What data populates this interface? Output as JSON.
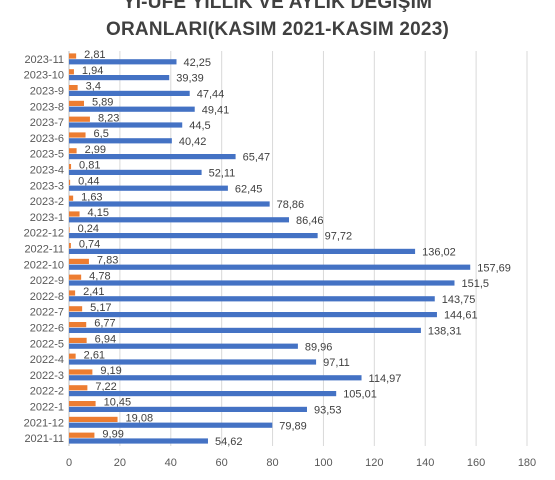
{
  "chart_data": {
    "type": "bar",
    "orientation": "horizontal",
    "title_lines": [
      "Yİ-ÜFE YILLIK VE AYLIK DEĞİŞİM",
      "ORANLARI(KASIM 2021-KASIM 2023)"
    ],
    "categories": [
      "2023-11",
      "2023-10",
      "2023-9",
      "2023-8",
      "2023-7",
      "2023-6",
      "2023-5",
      "2023-4",
      "2023-3",
      "2023-2",
      "2023-1",
      "2022-12",
      "2022-11",
      "2022-10",
      "2022-9",
      "2022-8",
      "2022-7",
      "2022-6",
      "2022-5",
      "2022-4",
      "2022-3",
      "2022-2",
      "2022-1",
      "2021-12",
      "2021-11"
    ],
    "series": [
      {
        "color": "#4472C4",
        "values": [
          42.25,
          39.39,
          47.44,
          49.41,
          44.5,
          40.42,
          65.47,
          52.11,
          62.45,
          78.86,
          86.46,
          97.72,
          136.02,
          157.69,
          151.5,
          143.75,
          144.61,
          138.31,
          89.96,
          97.11,
          114.97,
          105.01,
          93.53,
          79.89,
          54.62
        ],
        "labels": [
          "42,25",
          "39,39",
          "47,44",
          "49,41",
          "44,5",
          "40,42",
          "65,47",
          "52,11",
          "62,45",
          "78,86",
          "86,46",
          "97,72",
          "136,02",
          "157,69",
          "151,5",
          "143,75",
          "144,61",
          "138,31",
          "89,96",
          "97,11",
          "114,97",
          "105,01",
          "93,53",
          "79,89",
          "54,62"
        ]
      },
      {
        "color": "#ED7D31",
        "values": [
          2.81,
          1.94,
          3.4,
          5.89,
          8.23,
          6.5,
          2.99,
          0.81,
          0.44,
          1.63,
          4.15,
          0.24,
          0.74,
          7.83,
          4.78,
          2.41,
          5.17,
          6.77,
          6.94,
          2.61,
          9.19,
          7.22,
          10.45,
          19.08,
          9.99
        ],
        "labels": [
          "2,81",
          "1,94",
          "3,4",
          "5,89",
          "8,23",
          "6,5",
          "2,99",
          "0,81",
          "0,44",
          "1,63",
          "4,15",
          "0,24",
          "0,74",
          "7,83",
          "4,78",
          "2,41",
          "5,17",
          "6,77",
          "6,94",
          "2,61",
          "9,19",
          "7,22",
          "10,45",
          "19,08",
          "9,99"
        ]
      }
    ],
    "xlim": [
      0,
      180
    ],
    "xticks": [
      0,
      20,
      40,
      60,
      80,
      100,
      120,
      140,
      160,
      180
    ],
    "grid": "vertical",
    "legend": "none"
  }
}
